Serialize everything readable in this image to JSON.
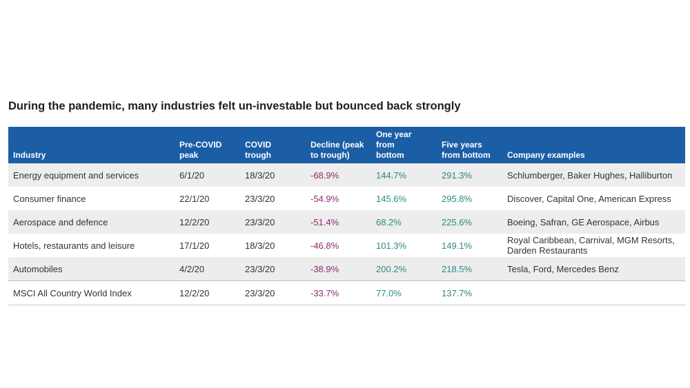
{
  "title": "During the pandemic, many industries felt un-investable but bounced back strongly",
  "table": {
    "headers": [
      "Industry",
      "Pre-COVID peak",
      "COVID trough",
      "Decline (peak to trough)",
      "One year from bottom",
      "Five years from bottom",
      "Company examples"
    ],
    "rows": [
      [
        "Energy equipment and services",
        "6/1/20",
        "18/3/20",
        "-68.9%",
        "144.7%",
        "291.3%",
        "Schlumberger, Baker Hughes, Halliburton"
      ],
      [
        "Consumer finance",
        "22/1/20",
        "23/3/20",
        "-54.9%",
        "145.6%",
        "295.8%",
        "Discover, Capital One, American Express"
      ],
      [
        "Aerospace and defence",
        "12/2/20",
        "23/3/20",
        "-51.4%",
        "68.2%",
        "225.6%",
        "Boeing, Safran, GE Aerospace, Airbus"
      ],
      [
        "Hotels, restaurants and leisure",
        "17/1/20",
        "18/3/20",
        "-46.8%",
        "101.3%",
        "149.1%",
        "Royal Caribbean, Carnival, MGM Resorts, Darden Restaurants"
      ],
      [
        "Automobiles",
        "4/2/20",
        "23/3/20",
        "-38.9%",
        "200.2%",
        "218.5%",
        "Tesla, Ford, Mercedes Benz"
      ],
      [
        "MSCI All Country World Index",
        "12/2/20",
        "23/3/20",
        "-33.7%",
        "77.0%",
        "137.7%",
        ""
      ]
    ]
  }
}
